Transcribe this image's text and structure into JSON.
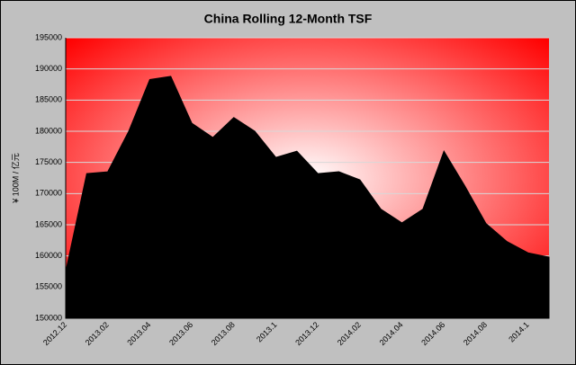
{
  "chart_data": {
    "type": "area",
    "title": "China Rolling 12-Month TSF",
    "y_label": "¥ 100M / 亿元",
    "categories": [
      "2012.12",
      null,
      "2013.02",
      null,
      "2013.04",
      null,
      "2013.06",
      null,
      "2013.08",
      null,
      "2013.1",
      null,
      "2013.12",
      null,
      "2014.02",
      null,
      "2014.04",
      null,
      "2014.06",
      null,
      "2014.08",
      null,
      "2014.1",
      null
    ],
    "values": [
      157500,
      173200,
      173500,
      180000,
      188300,
      188800,
      181300,
      179000,
      182200,
      180000,
      175800,
      176800,
      173200,
      173500,
      172200,
      167500,
      165300,
      167500,
      176800,
      171200,
      165200,
      162300,
      160500,
      159800
    ],
    "color": "#000000",
    "ylim": [
      150000,
      195000
    ],
    "yticks": [
      150000,
      155000,
      160000,
      165000,
      170000,
      175000,
      180000,
      185000,
      190000,
      195000
    ],
    "grid": true
  }
}
